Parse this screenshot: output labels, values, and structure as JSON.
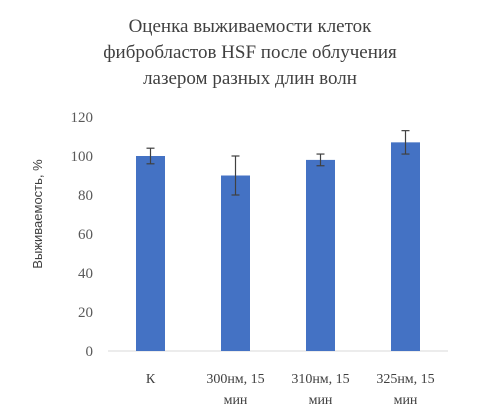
{
  "chart_data": {
    "type": "bar",
    "title": [
      "Оценка выживаемости клеток",
      "фибробластов HSF после облучения",
      "лазером разных длин волн"
    ],
    "ylabel": "Выживаемость, %",
    "xlabel": "",
    "categories": [
      [
        "К"
      ],
      [
        "300нм, 15",
        "мин"
      ],
      [
        "310нм, 15",
        "мин"
      ],
      [
        "325нм, 15",
        "мин"
      ]
    ],
    "values": [
      100,
      90,
      98,
      107
    ],
    "errors": [
      4,
      10,
      3,
      6
    ],
    "ylim": [
      0,
      120
    ],
    "yticks": [
      0,
      20,
      40,
      60,
      80,
      100,
      120
    ],
    "grid": false,
    "bar_color": "#4472C4",
    "error_color": "#404040"
  }
}
